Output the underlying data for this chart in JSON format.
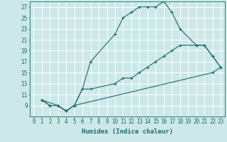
{
  "xlabel": "Humidex (Indice chaleur)",
  "bg_color": "#cce8e8",
  "grid_color": "#ffffff",
  "line_color": "#1a6b6b",
  "xlim": [
    -0.5,
    23.5
  ],
  "ylim": [
    7,
    28
  ],
  "xticks": [
    0,
    1,
    2,
    3,
    4,
    5,
    6,
    7,
    8,
    9,
    10,
    11,
    12,
    13,
    14,
    15,
    16,
    17,
    18,
    19,
    20,
    21,
    22,
    23
  ],
  "yticks": [
    9,
    11,
    13,
    15,
    17,
    19,
    21,
    23,
    25,
    27
  ],
  "line1_x": [
    1,
    2,
    3,
    4,
    5,
    6,
    7,
    10,
    11,
    12,
    13,
    14,
    15,
    16,
    17,
    18,
    20,
    21,
    22,
    23
  ],
  "line1_y": [
    10,
    9,
    9,
    8,
    9,
    12,
    17,
    22,
    25,
    26,
    27,
    27,
    27,
    28,
    26,
    23,
    20,
    20,
    18,
    16
  ],
  "line2_x": [
    1,
    2,
    3,
    4,
    5,
    6,
    7,
    10,
    11,
    12,
    13,
    14,
    15,
    16,
    17,
    18,
    20,
    21,
    22,
    23
  ],
  "line2_y": [
    10,
    9,
    9,
    8,
    9,
    12,
    12,
    13,
    14,
    14,
    15,
    16,
    17,
    18,
    19,
    20,
    20,
    20,
    18,
    16
  ],
  "line3_x": [
    1,
    3,
    4,
    5,
    22,
    23
  ],
  "line3_y": [
    10,
    9,
    8,
    9,
    15,
    16
  ],
  "markersize": 3,
  "linewidth": 0.8,
  "tick_fontsize": 5.5,
  "axis_fontsize": 6.5
}
